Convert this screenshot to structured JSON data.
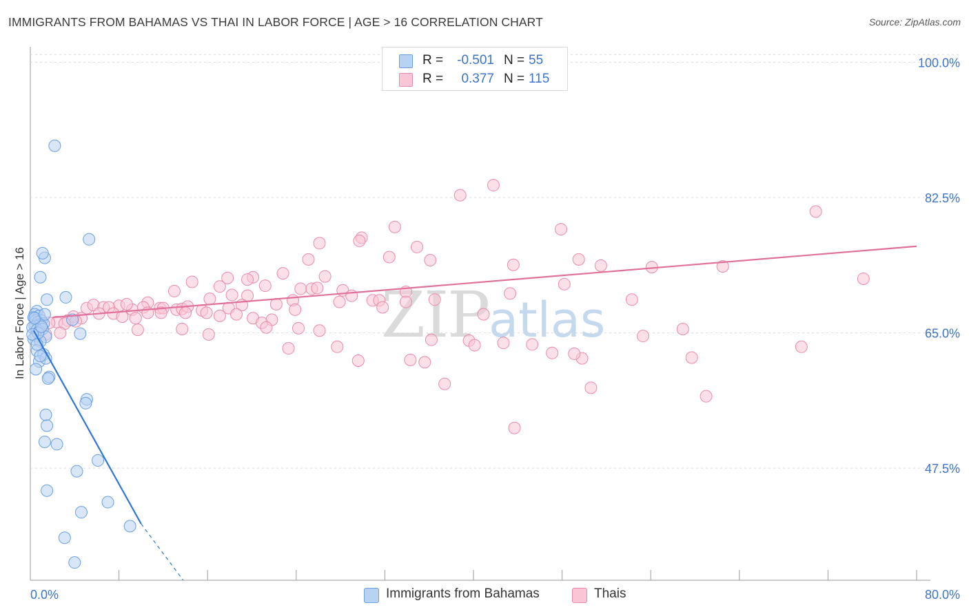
{
  "title": "IMMIGRANTS FROM BAHAMAS VS THAI IN LABOR FORCE | AGE > 16 CORRELATION CHART",
  "source": "Source: ZipAtlas.com",
  "watermark": {
    "zip": "ZIP",
    "atlas": "atlas"
  },
  "legend": {
    "rows": [
      {
        "r_label": "R =",
        "r_value": "-0.501",
        "n_label": "N =",
        "n_value": "55",
        "fill": "#b8d2f2",
        "stroke": "#6b9ee0"
      },
      {
        "r_label": "R =",
        "r_value": "0.377",
        "n_label": "N =",
        "n_value": "115",
        "fill": "#f9c6d6",
        "stroke": "#e98aab"
      }
    ]
  },
  "colors": {
    "blue_line": "#2f74d6",
    "pink_line": "#e0709a",
    "axis_label": "#3b73c8",
    "grid": "#dcdcdc"
  },
  "chart_data": {
    "type": "scatter",
    "title": "IMMIGRANTS FROM BAHAMAS VS THAI IN LABOR FORCE | AGE > 16 CORRELATION CHART",
    "xlabel": "",
    "ylabel": "In Labor Force | Age > 16",
    "xlim": [
      0,
      80
    ],
    "ylim": [
      33,
      102
    ],
    "x_tick_labels": [
      "0.0%",
      "80.0%"
    ],
    "y_ticks": [
      100.0,
      82.5,
      65.0,
      47.5
    ],
    "y_tick_labels": [
      "100.0%",
      "82.5%",
      "65.0%",
      "47.5%"
    ],
    "grid": true,
    "legend_position": "bottom-center",
    "series": [
      {
        "name": "Immigrants from Bahamas",
        "color": "#b8d2f2",
        "edge": "#6b9ee0",
        "trend": {
          "x0": 0.3,
          "y0": 65.3,
          "x1": 10.0,
          "y1": 40.3,
          "dash_to_x": 13.8,
          "dash_to_y": 30.5
        },
        "points": [
          [
            2.2,
            89.2
          ],
          [
            5.3,
            77.1
          ],
          [
            1.3,
            74.7
          ],
          [
            1.1,
            75.3
          ],
          [
            0.9,
            72.2
          ],
          [
            3.2,
            69.6
          ],
          [
            1.5,
            69.3
          ],
          [
            0.6,
            67.8
          ],
          [
            0.4,
            67.4
          ],
          [
            0.8,
            67.2
          ],
          [
            0.3,
            67.0
          ],
          [
            0.5,
            66.6
          ],
          [
            1.0,
            66.6
          ],
          [
            0.7,
            66.4
          ],
          [
            0.9,
            66.1
          ],
          [
            1.2,
            66.2
          ],
          [
            0.4,
            65.9
          ],
          [
            0.2,
            65.7
          ],
          [
            0.6,
            65.4
          ],
          [
            0.8,
            65.2
          ],
          [
            1.1,
            65.5
          ],
          [
            0.5,
            64.6
          ],
          [
            1.4,
            64.5
          ],
          [
            0.3,
            64.2
          ],
          [
            0.9,
            63.9
          ],
          [
            4.5,
            64.9
          ],
          [
            3.8,
            66.7
          ],
          [
            0.6,
            62.7
          ],
          [
            1.2,
            62.2
          ],
          [
            0.8,
            61.3
          ],
          [
            1.4,
            61.7
          ],
          [
            0.5,
            60.3
          ],
          [
            1.7,
            59.3
          ],
          [
            1.6,
            59.1
          ],
          [
            5.1,
            56.4
          ],
          [
            5.0,
            55.9
          ],
          [
            1.4,
            54.4
          ],
          [
            1.5,
            53.0
          ],
          [
            1.3,
            50.9
          ],
          [
            2.4,
            50.6
          ],
          [
            6.1,
            48.5
          ],
          [
            4.2,
            47.1
          ],
          [
            1.5,
            44.6
          ],
          [
            7.0,
            43.1
          ],
          [
            4.6,
            41.8
          ],
          [
            9.0,
            40.0
          ],
          [
            3.1,
            38.5
          ],
          [
            4.0,
            35.3
          ],
          [
            0.7,
            65.0
          ],
          [
            1.0,
            65.8
          ],
          [
            0.4,
            66.9
          ],
          [
            1.3,
            67.4
          ],
          [
            0.2,
            64.8
          ],
          [
            0.9,
            62.0
          ],
          [
            0.6,
            63.5
          ]
        ]
      },
      {
        "name": "Thais",
        "color": "#f9c6d6",
        "edge": "#e98aab",
        "trend": {
          "x0": 2.0,
          "y0": 67.0,
          "x1": 80.0,
          "y1": 76.2
        },
        "points": [
          [
            41.8,
            84.1
          ],
          [
            38.8,
            82.8
          ],
          [
            70.9,
            80.7
          ],
          [
            47.9,
            78.4
          ],
          [
            32.9,
            78.7
          ],
          [
            29.9,
            77.3
          ],
          [
            29.7,
            76.9
          ],
          [
            26.1,
            76.6
          ],
          [
            34.9,
            76.1
          ],
          [
            32.4,
            74.8
          ],
          [
            25.1,
            74.5
          ],
          [
            49.5,
            74.5
          ],
          [
            36.1,
            74.4
          ],
          [
            51.5,
            73.7
          ],
          [
            43.6,
            73.8
          ],
          [
            22.8,
            72.7
          ],
          [
            20.1,
            72.2
          ],
          [
            26.6,
            72.3
          ],
          [
            17.8,
            72.1
          ],
          [
            19.6,
            71.9
          ],
          [
            14.6,
            71.6
          ],
          [
            17.1,
            71.0
          ],
          [
            21.2,
            71.1
          ],
          [
            24.4,
            70.7
          ],
          [
            25.4,
            70.7
          ],
          [
            25.9,
            70.8
          ],
          [
            28.2,
            70.5
          ],
          [
            33.9,
            70.3
          ],
          [
            48.2,
            71.3
          ],
          [
            13.0,
            70.4
          ],
          [
            16.2,
            69.4
          ],
          [
            18.2,
            69.9
          ],
          [
            19.6,
            69.8
          ],
          [
            23.7,
            69.2
          ],
          [
            27.9,
            69.0
          ],
          [
            29.0,
            69.8
          ],
          [
            30.9,
            69.2
          ],
          [
            31.5,
            69.2
          ],
          [
            33.9,
            69.0
          ],
          [
            36.5,
            69.3
          ],
          [
            10.6,
            68.9
          ],
          [
            11.7,
            68.2
          ],
          [
            12.0,
            68.2
          ],
          [
            13.2,
            68.0
          ],
          [
            13.7,
            68.1
          ],
          [
            14.2,
            68.4
          ],
          [
            8.0,
            68.5
          ],
          [
            9.2,
            68.0
          ],
          [
            10.2,
            68.3
          ],
          [
            15.5,
            67.9
          ],
          [
            17.9,
            68.2
          ],
          [
            19.1,
            68.6
          ],
          [
            22.2,
            68.7
          ],
          [
            23.9,
            68.0
          ],
          [
            5.1,
            68.2
          ],
          [
            5.7,
            68.6
          ],
          [
            6.6,
            68.3
          ],
          [
            7.1,
            68.3
          ],
          [
            8.7,
            68.7
          ],
          [
            10.6,
            67.6
          ],
          [
            11.8,
            67.6
          ],
          [
            14.0,
            67.6
          ],
          [
            15.9,
            67.6
          ],
          [
            17.1,
            67.2
          ],
          [
            18.6,
            67.4
          ],
          [
            20.1,
            66.9
          ],
          [
            21.8,
            66.7
          ],
          [
            6.2,
            67.5
          ],
          [
            7.5,
            67.5
          ],
          [
            8.3,
            67.1
          ],
          [
            9.5,
            66.9
          ],
          [
            3.4,
            66.6
          ],
          [
            3.9,
            67.1
          ],
          [
            4.6,
            66.9
          ],
          [
            2.4,
            66.4
          ],
          [
            3.1,
            66.2
          ],
          [
            1.7,
            66.3
          ],
          [
            4.1,
            66.5
          ],
          [
            2.7,
            65.0
          ],
          [
            1.4,
            64.8
          ],
          [
            9.7,
            65.4
          ],
          [
            13.7,
            65.5
          ],
          [
            16.1,
            64.8
          ],
          [
            20.9,
            66.3
          ],
          [
            21.3,
            65.7
          ],
          [
            24.2,
            65.6
          ],
          [
            26.1,
            65.3
          ],
          [
            23.3,
            63.0
          ],
          [
            27.7,
            63.2
          ],
          [
            29.6,
            61.4
          ],
          [
            34.3,
            61.5
          ],
          [
            36.2,
            64.1
          ],
          [
            39.6,
            64.0
          ],
          [
            40.1,
            63.4
          ],
          [
            42.7,
            63.7
          ],
          [
            45.3,
            63.5
          ],
          [
            47.1,
            62.4
          ],
          [
            49.8,
            61.7
          ],
          [
            59.7,
            61.8
          ],
          [
            61.0,
            56.8
          ],
          [
            69.6,
            63.2
          ],
          [
            56.1,
            73.5
          ],
          [
            62.5,
            73.6
          ],
          [
            75.2,
            72.0
          ],
          [
            54.3,
            69.3
          ],
          [
            55.3,
            64.6
          ],
          [
            58.9,
            65.5
          ],
          [
            49.1,
            62.3
          ],
          [
            43.3,
            70.1
          ],
          [
            31.8,
            68.3
          ],
          [
            35.6,
            61.2
          ],
          [
            40.9,
            67.4
          ],
          [
            37.4,
            58.4
          ],
          [
            43.7,
            52.7
          ],
          [
            50.6,
            57.9
          ]
        ]
      }
    ]
  },
  "bottom_legend": [
    {
      "label": "Immigrants from Bahamas",
      "fill": "#b8d2f2",
      "stroke": "#6b9ee0"
    },
    {
      "label": "Thais",
      "fill": "#f9c6d6",
      "stroke": "#e98aab"
    }
  ]
}
